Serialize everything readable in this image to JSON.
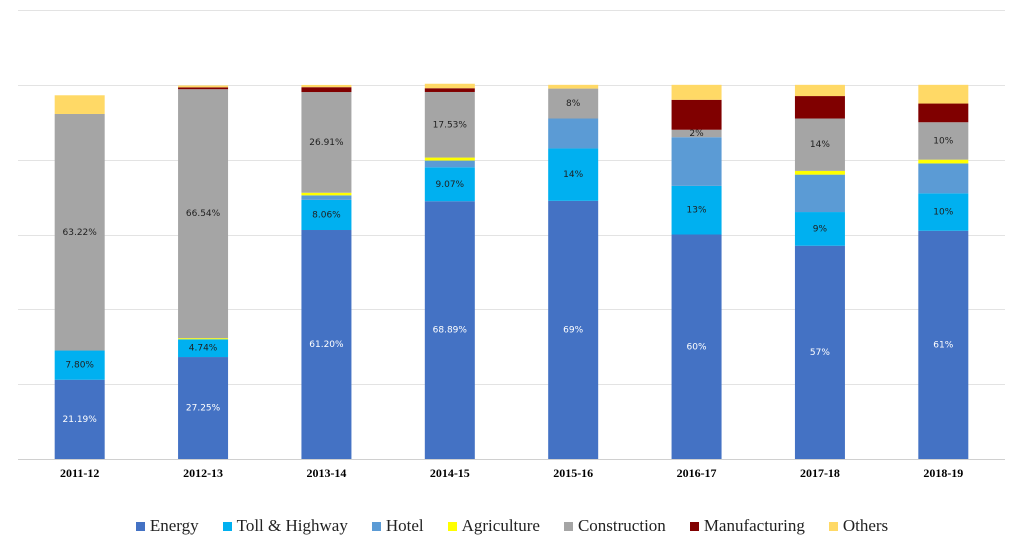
{
  "chart_data": {
    "type": "bar",
    "stacked": true,
    "title": "",
    "xlabel": "",
    "ylabel": "",
    "ylim": [
      0,
      120
    ],
    "grid": true,
    "legend_position": "bottom",
    "categories": [
      "2011-12",
      "2012-13",
      "2013-14",
      "2014-15",
      "2015-16",
      "2016-17",
      "2017-18",
      "2018-19"
    ],
    "series": [
      {
        "name": "Energy",
        "color": "#4472C4",
        "label_color": "#ffffff",
        "values": [
          21.19,
          27.25,
          61.2,
          68.89,
          69,
          60,
          57,
          61
        ],
        "labels": [
          "21.19%",
          "27.25%",
          "61.20%",
          "68.89%",
          "69%",
          "60%",
          "57%",
          "61%"
        ]
      },
      {
        "name": "Toll & Highway",
        "color": "#00B0F0",
        "label_color": "#1f1f1f",
        "values": [
          7.8,
          4.74,
          8.06,
          9.07,
          14,
          13,
          9,
          10
        ],
        "labels": [
          "7.80%",
          "4.74%",
          "8.06%",
          "9.07%",
          "14%",
          "13%",
          "9%",
          "10%"
        ]
      },
      {
        "name": "Hotel",
        "color": "#5B9BD5",
        "label_color": "#1f1f1f",
        "values": [
          0,
          0,
          1.2,
          1.8,
          8,
          13,
          10,
          8
        ],
        "labels": [
          "",
          "",
          "",
          "",
          "",
          "",
          "",
          ""
        ]
      },
      {
        "name": "Agriculture",
        "color": "#FFFF00",
        "label_color": "#1f1f1f",
        "values": [
          0,
          0.3,
          0.7,
          0.8,
          0,
          0,
          1,
          1
        ],
        "labels": [
          "",
          "",
          "",
          "",
          "",
          "",
          "",
          ""
        ]
      },
      {
        "name": "Construction",
        "color": "#A5A5A5",
        "label_color": "#1f1f1f",
        "values": [
          63.22,
          66.54,
          26.91,
          17.53,
          8,
          2,
          14,
          10
        ],
        "labels": [
          "63.22%",
          "66.54%",
          "26.91%",
          "17.53%",
          "8%",
          "2%",
          "14%",
          "10%"
        ]
      },
      {
        "name": "Manufacturing",
        "color": "#800000",
        "label_color": "#ffffff",
        "values": [
          0,
          0.5,
          1.3,
          1.0,
          0,
          8,
          6,
          5
        ],
        "labels": [
          "",
          "",
          "",
          "",
          "",
          "",
          "",
          ""
        ]
      },
      {
        "name": "Others",
        "color": "#FFD966",
        "label_color": "#1f1f1f",
        "values": [
          5,
          0.5,
          0.6,
          1.2,
          1,
          4,
          3,
          5
        ],
        "labels": [
          "",
          "",
          "",
          "",
          "",
          "",
          "",
          ""
        ]
      }
    ]
  }
}
